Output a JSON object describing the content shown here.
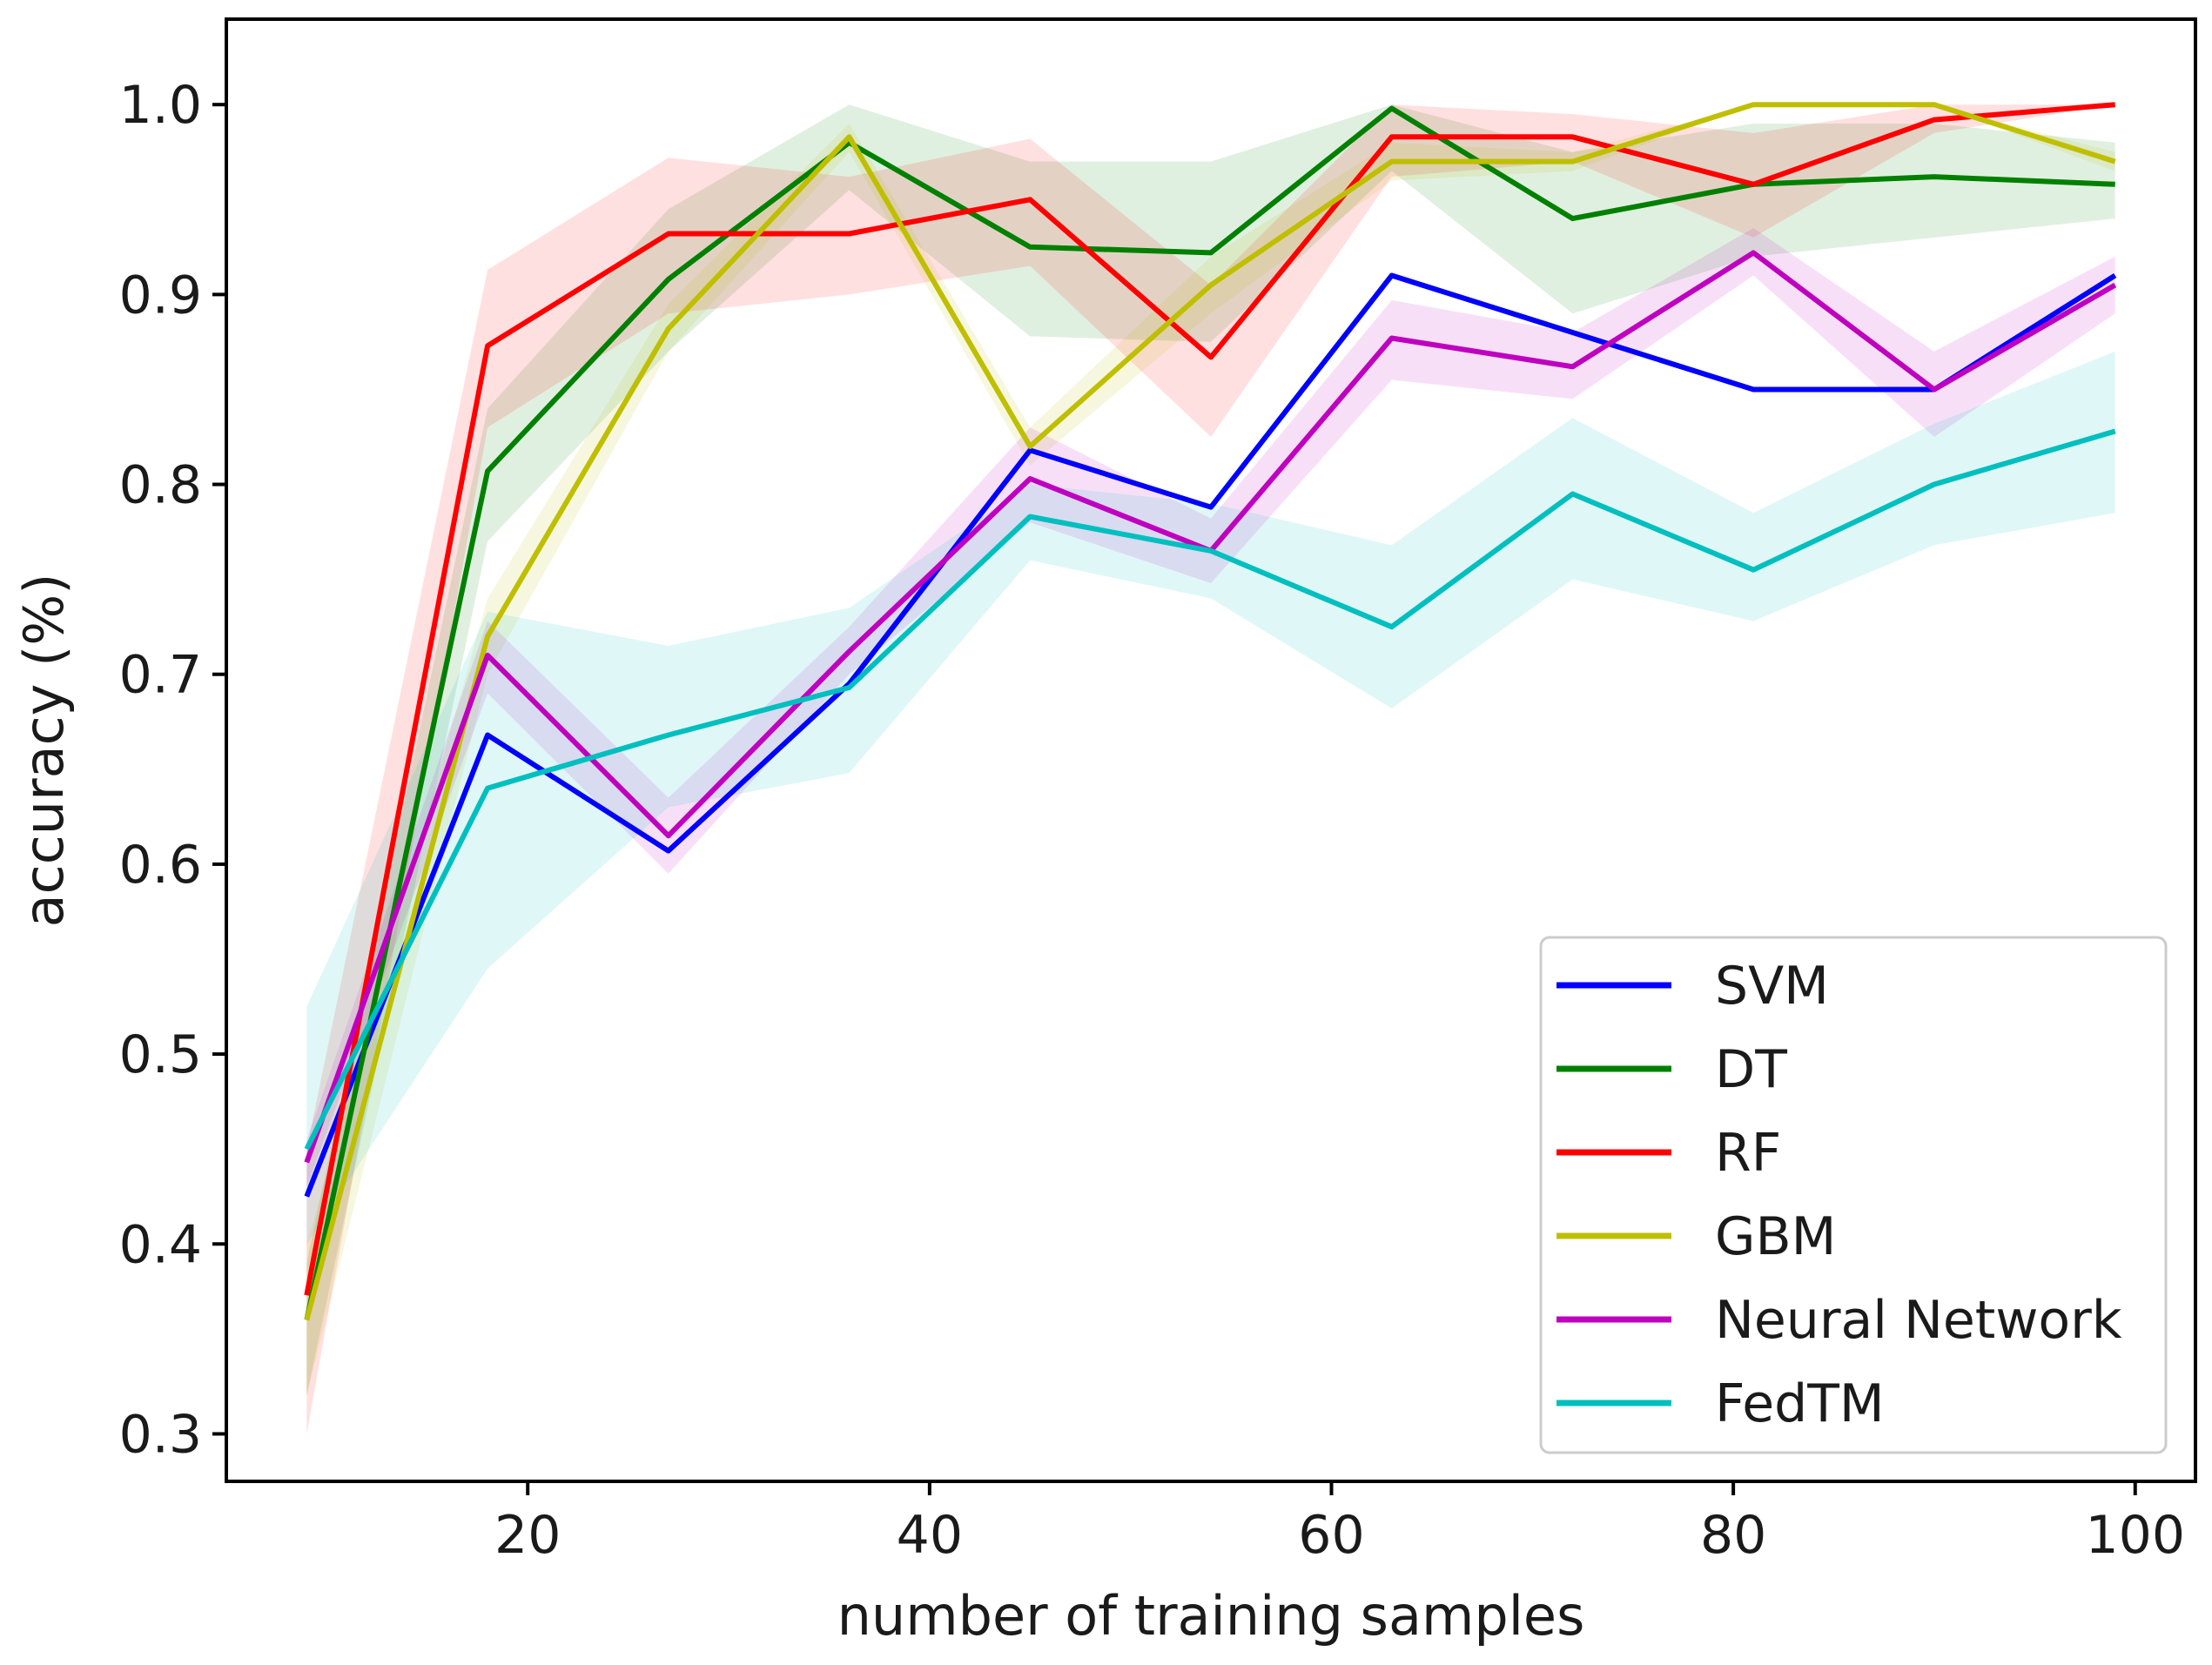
{
  "chart_data": {
    "type": "line",
    "title": "",
    "xlabel": "number of training samples",
    "ylabel": "accuracy (%)",
    "xlim": [
      5,
      103
    ],
    "ylim": [
      0.275,
      1.045
    ],
    "xticks": [
      20,
      40,
      60,
      80,
      100
    ],
    "xtick_labels": [
      "20",
      "40",
      "60",
      "80",
      "100"
    ],
    "yticks": [
      0.3,
      0.4,
      0.5,
      0.6,
      0.7,
      0.8,
      0.9,
      1.0
    ],
    "ytick_labels": [
      "0.3",
      "0.4",
      "0.5",
      "0.6",
      "0.7",
      "0.8",
      "0.9",
      "1.0"
    ],
    "grid": false,
    "legend_position": "lower-right",
    "x": [
      9,
      18,
      27,
      36,
      45,
      54,
      63,
      72,
      81,
      90,
      99
    ],
    "series": [
      {
        "name": "SVM",
        "color": "#0000ff",
        "values": [
          0.425,
          0.668,
          0.607,
          0.695,
          0.818,
          0.788,
          0.91,
          0.88,
          0.85,
          0.85,
          0.91
        ],
        "lower": [
          0.425,
          0.668,
          0.607,
          0.695,
          0.818,
          0.788,
          0.91,
          0.88,
          0.85,
          0.85,
          0.91
        ],
        "upper": [
          0.425,
          0.668,
          0.607,
          0.695,
          0.818,
          0.788,
          0.91,
          0.88,
          0.85,
          0.85,
          0.91
        ]
      },
      {
        "name": "DT",
        "color": "#008000",
        "values": [
          0.36,
          0.807,
          0.908,
          0.98,
          0.925,
          0.922,
          0.998,
          0.94,
          0.958,
          0.962,
          0.958
        ],
        "lower": [
          0.32,
          0.77,
          0.87,
          0.955,
          0.878,
          0.875,
          0.965,
          0.89,
          0.92,
          0.93,
          0.94
        ],
        "upper": [
          0.39,
          0.84,
          0.945,
          1.0,
          0.97,
          0.97,
          1.0,
          0.975,
          0.99,
          0.99,
          0.98
        ]
      },
      {
        "name": "RF",
        "color": "#ff0000",
        "values": [
          0.373,
          0.873,
          0.932,
          0.932,
          0.95,
          0.867,
          0.983,
          0.983,
          0.958,
          0.992,
          1.0
        ],
        "lower": [
          0.3,
          0.83,
          0.89,
          0.9,
          0.915,
          0.825,
          0.962,
          0.97,
          0.93,
          0.985,
          1.0
        ],
        "upper": [
          0.45,
          0.913,
          0.972,
          0.962,
          0.982,
          0.905,
          1.0,
          0.995,
          0.985,
          1.0,
          1.0
        ]
      },
      {
        "name": "GBM",
        "color": "#bfbf00",
        "values": [
          0.36,
          0.72,
          0.882,
          0.983,
          0.82,
          0.905,
          0.97,
          0.97,
          1.0,
          1.0,
          0.97
        ],
        "lower": [
          0.32,
          0.7,
          0.87,
          0.975,
          0.81,
          0.89,
          0.96,
          0.965,
          1.0,
          1.0,
          0.965
        ],
        "upper": [
          0.4,
          0.74,
          0.895,
          0.99,
          0.83,
          0.92,
          0.98,
          0.975,
          1.0,
          1.0,
          0.975
        ]
      },
      {
        "name": "Neural Network",
        "color": "#bf00bf",
        "values": [
          0.443,
          0.71,
          0.615,
          0.712,
          0.803,
          0.765,
          0.877,
          0.862,
          0.922,
          0.85,
          0.905
        ],
        "lower": [
          0.43,
          0.69,
          0.595,
          0.7,
          0.78,
          0.748,
          0.855,
          0.845,
          0.91,
          0.825,
          0.89
        ],
        "upper": [
          0.455,
          0.728,
          0.635,
          0.725,
          0.83,
          0.782,
          0.897,
          0.88,
          0.935,
          0.87,
          0.92
        ]
      },
      {
        "name": "FedTM",
        "color": "#00bfbf",
        "values": [
          0.45,
          0.64,
          0.668,
          0.693,
          0.783,
          0.765,
          0.725,
          0.795,
          0.755,
          0.8,
          0.828
        ],
        "lower": [
          0.4,
          0.545,
          0.63,
          0.648,
          0.76,
          0.74,
          0.682,
          0.75,
          0.728,
          0.768,
          0.785
        ],
        "upper": [
          0.525,
          0.733,
          0.715,
          0.735,
          0.8,
          0.79,
          0.768,
          0.835,
          0.785,
          0.832,
          0.87
        ]
      }
    ]
  }
}
